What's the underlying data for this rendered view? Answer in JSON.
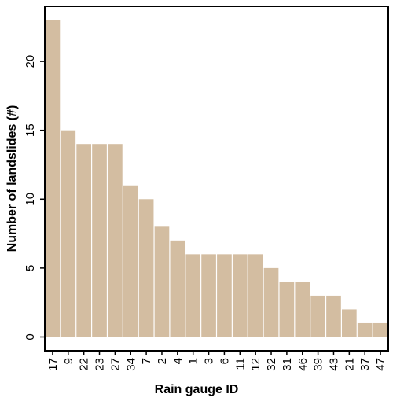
{
  "chart_data": {
    "type": "bar",
    "x_label": "Rain gauge ID",
    "y_label": "Number of landslides (#)",
    "categories": [
      "17",
      "9",
      "22",
      "23",
      "27",
      "34",
      "7",
      "2",
      "4",
      "1",
      "3",
      "6",
      "11",
      "12",
      "32",
      "31",
      "46",
      "39",
      "43",
      "21",
      "37",
      "47"
    ],
    "values": [
      23,
      15,
      14,
      14,
      14,
      11,
      10,
      8,
      7,
      6,
      6,
      6,
      6,
      6,
      5,
      4,
      4,
      3,
      3,
      2,
      1,
      1
    ],
    "color": "#d3bda1",
    "ylim": [
      -1,
      24
    ],
    "yticks": [
      0,
      5,
      10,
      15,
      20
    ],
    "grid": false
  }
}
